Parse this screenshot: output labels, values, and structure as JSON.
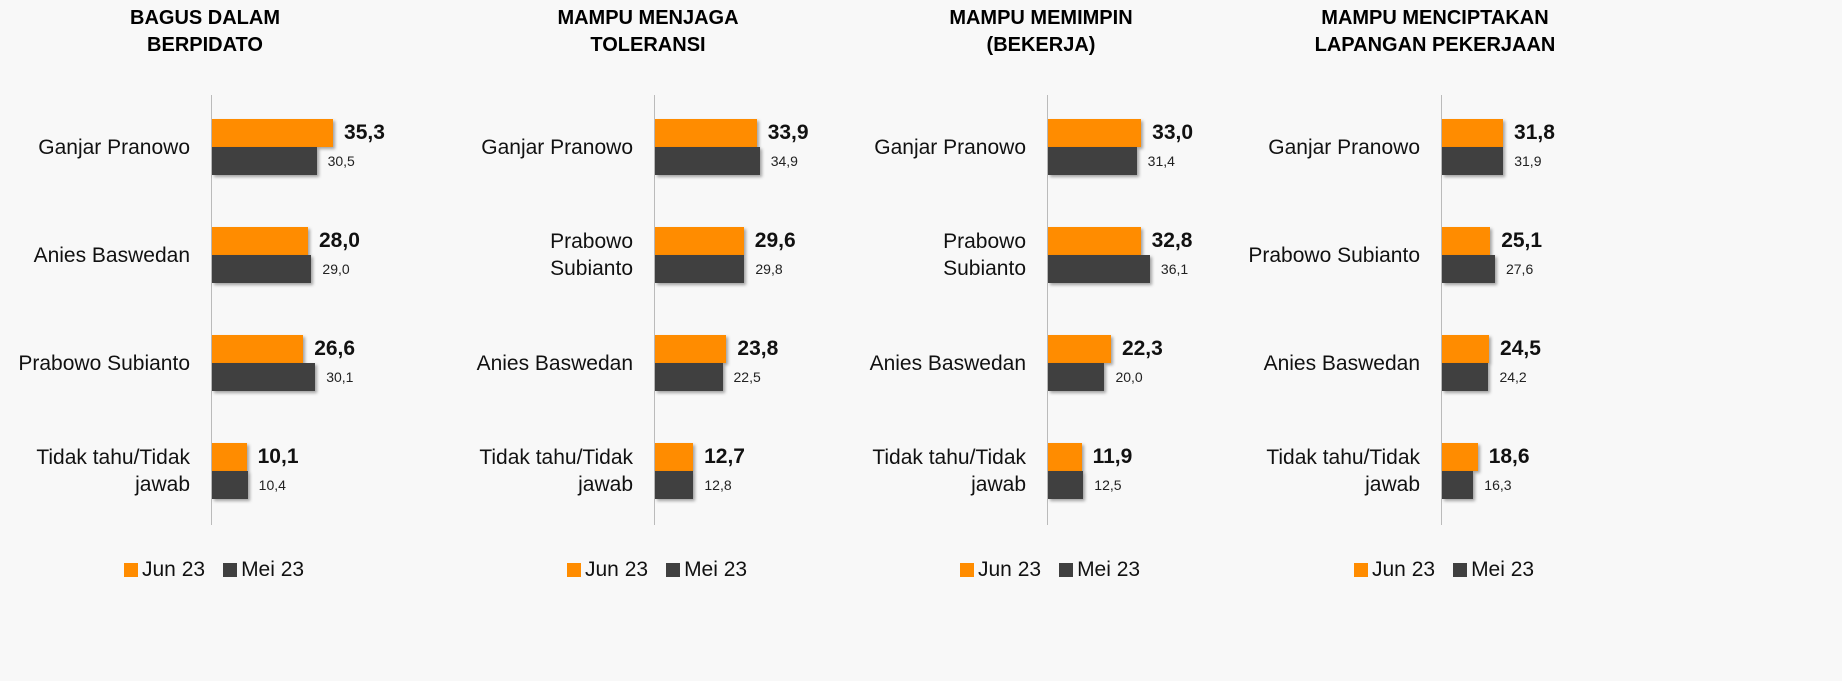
{
  "chart_data": [
    {
      "type": "bar",
      "orientation": "horizontal",
      "title": "BAGUS DALAM\nBERPIDATO",
      "categories": [
        "Ganjar Pranowo",
        "Anies Baswedan",
        "Prabowo Subianto",
        "Tidak tahu/Tidak\njawab"
      ],
      "xlim": [
        0,
        70
      ],
      "series": [
        {
          "name": "Jun 23",
          "color": "#ff8c00",
          "values": [
            35.3,
            28.0,
            26.6,
            10.1
          ],
          "value_labels": [
            "35,3",
            "28,0",
            "26,6",
            "10,1"
          ]
        },
        {
          "name": "Mei 23",
          "color": "#404040",
          "values": [
            30.5,
            29.0,
            30.1,
            10.4
          ],
          "value_labels": [
            "30,5",
            "29,0",
            "30,1",
            "10,4"
          ]
        }
      ],
      "legend": "bottom"
    },
    {
      "type": "bar",
      "orientation": "horizontal",
      "title": "MAMPU MENJAGA\nTOLERANSI",
      "categories": [
        "Ganjar Pranowo",
        "Prabowo\nSubianto",
        "Anies Baswedan",
        "Tidak tahu/Tidak\njawab"
      ],
      "xlim": [
        0,
        80
      ],
      "series": [
        {
          "name": "Jun 23",
          "color": "#ff8c00",
          "values": [
            33.9,
            29.6,
            23.8,
            12.7
          ],
          "value_labels": [
            "33,9",
            "29,6",
            "23,8",
            "12,7"
          ]
        },
        {
          "name": "Mei 23",
          "color": "#404040",
          "values": [
            34.9,
            29.8,
            22.5,
            12.8
          ],
          "value_labels": [
            "34,9",
            "29,8",
            "22,5",
            "12,8"
          ]
        }
      ],
      "legend": "bottom"
    },
    {
      "type": "bar",
      "orientation": "horizontal",
      "title": "MAMPU MEMIMPIN\n(BEKERJA)",
      "categories": [
        "Ganjar Pranowo",
        "Prabowo\nSubianto",
        "Anies Baswedan",
        "Tidak tahu/Tidak\njawab"
      ],
      "xlim": [
        0,
        85
      ],
      "series": [
        {
          "name": "Jun 23",
          "color": "#ff8c00",
          "values": [
            33.0,
            32.8,
            22.3,
            11.9
          ],
          "value_labels": [
            "33,0",
            "32,8",
            "22,3",
            "11,9"
          ]
        },
        {
          "name": "Mei 23",
          "color": "#404040",
          "values": [
            31.4,
            36.1,
            20.0,
            12.5
          ],
          "value_labels": [
            "31,4",
            "36,1",
            "20,0",
            "12,5"
          ]
        }
      ],
      "legend": "bottom"
    },
    {
      "type": "bar",
      "orientation": "horizontal",
      "title": "MAMPU MENCIPTAKAN\nLAPANGAN PEKERJAAN",
      "categories": [
        "Ganjar Pranowo",
        "Prabowo Subianto",
        "Anies Baswedan",
        "Tidak tahu/Tidak\njawab"
      ],
      "xlim": [
        0,
        125
      ],
      "series": [
        {
          "name": "Jun 23",
          "color": "#ff8c00",
          "values": [
            31.8,
            25.1,
            24.5,
            18.6
          ],
          "value_labels": [
            "31,8",
            "25,1",
            "24,5",
            "18,6"
          ]
        },
        {
          "name": "Mei 23",
          "color": "#404040",
          "values": [
            31.9,
            27.6,
            24.2,
            16.3
          ],
          "value_labels": [
            "31,9",
            "27,6",
            "24,2",
            "16,3"
          ]
        }
      ],
      "legend": "bottom"
    }
  ]
}
